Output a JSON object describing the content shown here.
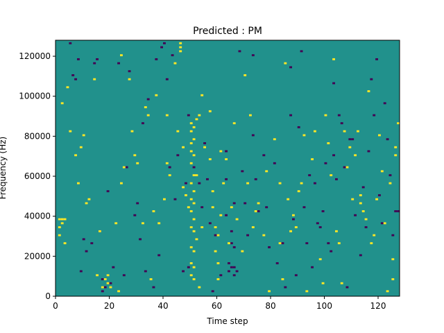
{
  "chart_data": {
    "type": "heatmap",
    "title": "Predicted : PM",
    "xlabel": "Time step",
    "ylabel": "Frequency (Hz)",
    "xlim": [
      0,
      128
    ],
    "ylim": [
      0,
      128000
    ],
    "x_ticks": [
      0,
      20,
      40,
      60,
      80,
      100,
      120
    ],
    "y_ticks": [
      0,
      20000,
      40000,
      60000,
      80000,
      100000,
      120000
    ],
    "x_tick_labels": [
      "0",
      "20",
      "40",
      "60",
      "80",
      "100",
      "120"
    ],
    "y_tick_labels": [
      "0",
      "20000",
      "40000",
      "60000",
      "80000",
      "100000",
      "120000"
    ],
    "grid": false,
    "n_time_steps": 128,
    "n_freq_bins": 128,
    "bin_hz": 1000,
    "default_value": 0,
    "colormap": {
      "-1": "#440154",
      "0": "#21918c",
      "1": "#fde725"
    },
    "cells_high": [
      [
        2,
        34000
      ],
      [
        2,
        30000
      ],
      [
        2,
        38000
      ],
      [
        3,
        38000
      ],
      [
        3,
        36000
      ],
      [
        4,
        38000
      ],
      [
        4,
        26000
      ],
      [
        3,
        96000
      ],
      [
        5,
        104000
      ],
      [
        6,
        82000
      ],
      [
        8,
        70000
      ],
      [
        9,
        56000
      ],
      [
        10,
        74000
      ],
      [
        11,
        80000
      ],
      [
        12,
        46000
      ],
      [
        13,
        48000
      ],
      [
        15,
        108000
      ],
      [
        16,
        10000
      ],
      [
        17,
        32000
      ],
      [
        18,
        4000
      ],
      [
        19,
        8000
      ],
      [
        20,
        10000
      ],
      [
        20,
        6000
      ],
      [
        21,
        4000
      ],
      [
        23,
        36000
      ],
      [
        24,
        2000
      ],
      [
        25,
        56000
      ],
      [
        25,
        120000
      ],
      [
        26,
        64000
      ],
      [
        28,
        108000
      ],
      [
        29,
        82000
      ],
      [
        30,
        70000
      ],
      [
        31,
        66000
      ],
      [
        33,
        36000
      ],
      [
        34,
        94000
      ],
      [
        35,
        90000
      ],
      [
        36,
        8000
      ],
      [
        37,
        42000
      ],
      [
        38,
        100000
      ],
      [
        39,
        36000
      ],
      [
        41,
        48000
      ],
      [
        42,
        66000
      ],
      [
        42,
        90000
      ],
      [
        43,
        60000
      ],
      [
        45,
        116000
      ],
      [
        46,
        82000
      ],
      [
        47,
        124000
      ],
      [
        47,
        126000
      ],
      [
        47,
        122000
      ],
      [
        48,
        74000
      ],
      [
        48,
        54000
      ],
      [
        49,
        50000
      ],
      [
        50,
        44000
      ],
      [
        51,
        86000
      ],
      [
        51,
        82000
      ],
      [
        51,
        76000
      ],
      [
        51,
        72000
      ],
      [
        51,
        66000
      ],
      [
        51,
        56000
      ],
      [
        51,
        48000
      ],
      [
        51,
        42000
      ],
      [
        51,
        34000
      ],
      [
        51,
        24000
      ],
      [
        51,
        16000
      ],
      [
        51,
        10000
      ],
      [
        52,
        84000
      ],
      [
        52,
        78000
      ],
      [
        52,
        70000
      ],
      [
        52,
        60000
      ],
      [
        52,
        52000
      ],
      [
        52,
        46000
      ],
      [
        52,
        38000
      ],
      [
        52,
        32000
      ],
      [
        52,
        22000
      ],
      [
        52,
        14000
      ],
      [
        52,
        8000
      ],
      [
        53,
        88000
      ],
      [
        53,
        60000
      ],
      [
        53,
        28000
      ],
      [
        54,
        90000
      ],
      [
        54,
        4000
      ],
      [
        55,
        100000
      ],
      [
        55,
        34000
      ],
      [
        56,
        74000
      ],
      [
        58,
        92000
      ],
      [
        58,
        68000
      ],
      [
        59,
        52000
      ],
      [
        59,
        44000
      ],
      [
        60,
        34000
      ],
      [
        60,
        22000
      ],
      [
        61,
        30000
      ],
      [
        61,
        16000
      ],
      [
        61,
        8000
      ],
      [
        62,
        72000
      ],
      [
        62,
        40000
      ],
      [
        63,
        56000
      ],
      [
        64,
        68000
      ],
      [
        65,
        26000
      ],
      [
        66,
        44000
      ],
      [
        67,
        86000
      ],
      [
        68,
        38000
      ],
      [
        70,
        22000
      ],
      [
        71,
        110000
      ],
      [
        72,
        56000
      ],
      [
        73,
        90000
      ],
      [
        74,
        34000
      ],
      [
        75,
        42000
      ],
      [
        76,
        46000
      ],
      [
        78,
        30000
      ],
      [
        79,
        62000
      ],
      [
        80,
        2000
      ],
      [
        82,
        78000
      ],
      [
        84,
        56000
      ],
      [
        84,
        26000
      ],
      [
        85,
        8000
      ],
      [
        86,
        116000
      ],
      [
        87,
        48000
      ],
      [
        88,
        32000
      ],
      [
        89,
        40000
      ],
      [
        90,
        34000
      ],
      [
        91,
        52000
      ],
      [
        92,
        56000
      ],
      [
        93,
        80000
      ],
      [
        94,
        2000
      ],
      [
        96,
        68000
      ],
      [
        97,
        82000
      ],
      [
        99,
        18000
      ],
      [
        100,
        6000
      ],
      [
        101,
        90000
      ],
      [
        102,
        76000
      ],
      [
        103,
        60000
      ],
      [
        104,
        118000
      ],
      [
        105,
        32000
      ],
      [
        106,
        26000
      ],
      [
        107,
        6000
      ],
      [
        108,
        82000
      ],
      [
        109,
        64000
      ],
      [
        110,
        74000
      ],
      [
        111,
        48000
      ],
      [
        112,
        70000
      ],
      [
        113,
        82000
      ],
      [
        114,
        50000
      ],
      [
        114,
        46000
      ],
      [
        115,
        42000
      ],
      [
        116,
        38000
      ],
      [
        117,
        102000
      ],
      [
        118,
        26000
      ],
      [
        119,
        30000
      ],
      [
        120,
        48000
      ],
      [
        121,
        80000
      ],
      [
        122,
        62000
      ],
      [
        123,
        36000
      ],
      [
        124,
        2000
      ],
      [
        125,
        56000
      ],
      [
        126,
        18000
      ],
      [
        126,
        8000
      ],
      [
        127,
        74000
      ],
      [
        127,
        70000
      ],
      [
        128,
        86000
      ]
    ],
    "cells_low": [
      [
        6,
        126000
      ],
      [
        7,
        110000
      ],
      [
        8,
        108000
      ],
      [
        9,
        118000
      ],
      [
        10,
        12000
      ],
      [
        11,
        28000
      ],
      [
        12,
        22000
      ],
      [
        14,
        26000
      ],
      [
        15,
        116000
      ],
      [
        16,
        118000
      ],
      [
        17,
        32000
      ],
      [
        18,
        8000
      ],
      [
        18,
        2000
      ],
      [
        19,
        4000
      ],
      [
        20,
        52000
      ],
      [
        21,
        6000
      ],
      [
        22,
        14000
      ],
      [
        24,
        116000
      ],
      [
        26,
        10000
      ],
      [
        27,
        64000
      ],
      [
        28,
        112000
      ],
      [
        30,
        40000
      ],
      [
        31,
        46000
      ],
      [
        32,
        28000
      ],
      [
        33,
        86000
      ],
      [
        34,
        12000
      ],
      [
        35,
        98000
      ],
      [
        37,
        4000
      ],
      [
        38,
        118000
      ],
      [
        39,
        20000
      ],
      [
        40,
        124000
      ],
      [
        41,
        126000
      ],
      [
        42,
        108000
      ],
      [
        43,
        64000
      ],
      [
        44,
        120000
      ],
      [
        45,
        48000
      ],
      [
        46,
        70000
      ],
      [
        48,
        12000
      ],
      [
        49,
        56000
      ],
      [
        50,
        90000
      ],
      [
        50,
        14000
      ],
      [
        52,
        64000
      ],
      [
        54,
        56000
      ],
      [
        55,
        44000
      ],
      [
        56,
        76000
      ],
      [
        57,
        58000
      ],
      [
        58,
        36000
      ],
      [
        59,
        2000
      ],
      [
        60,
        30000
      ],
      [
        62,
        10000
      ],
      [
        64,
        72000
      ],
      [
        64,
        58000
      ],
      [
        64,
        40000
      ],
      [
        65,
        16000
      ],
      [
        65,
        12000
      ],
      [
        66,
        26000
      ],
      [
        66,
        14000
      ],
      [
        67,
        14000
      ],
      [
        67,
        10000
      ],
      [
        67,
        24000
      ],
      [
        66,
        32000
      ],
      [
        67,
        46000
      ],
      [
        68,
        12000
      ],
      [
        69,
        122000
      ],
      [
        70,
        62000
      ],
      [
        71,
        46000
      ],
      [
        72,
        30000
      ],
      [
        74,
        120000
      ],
      [
        74,
        80000
      ],
      [
        75,
        58000
      ],
      [
        76,
        42000
      ],
      [
        78,
        70000
      ],
      [
        79,
        44000
      ],
      [
        80,
        24000
      ],
      [
        82,
        66000
      ],
      [
        83,
        16000
      ],
      [
        85,
        26000
      ],
      [
        86,
        4000
      ],
      [
        88,
        114000
      ],
      [
        88,
        90000
      ],
      [
        89,
        38000
      ],
      [
        90,
        10000
      ],
      [
        91,
        84000
      ],
      [
        92,
        122000
      ],
      [
        93,
        44000
      ],
      [
        94,
        26000
      ],
      [
        95,
        60000
      ],
      [
        96,
        14000
      ],
      [
        97,
        56000
      ],
      [
        98,
        36000
      ],
      [
        99,
        34000
      ],
      [
        100,
        42000
      ],
      [
        101,
        66000
      ],
      [
        102,
        26000
      ],
      [
        103,
        22000
      ],
      [
        104,
        106000
      ],
      [
        104,
        70000
      ],
      [
        105,
        58000
      ],
      [
        106,
        90000
      ],
      [
        107,
        86000
      ],
      [
        108,
        64000
      ],
      [
        109,
        4000
      ],
      [
        110,
        78000
      ],
      [
        111,
        78000
      ],
      [
        112,
        40000
      ],
      [
        114,
        20000
      ],
      [
        115,
        54000
      ],
      [
        116,
        34000
      ],
      [
        117,
        72000
      ],
      [
        118,
        108000
      ],
      [
        119,
        90000
      ],
      [
        120,
        118000
      ],
      [
        121,
        50000
      ],
      [
        122,
        36000
      ],
      [
        123,
        96000
      ],
      [
        124,
        78000
      ],
      [
        125,
        60000
      ],
      [
        126,
        30000
      ],
      [
        127,
        42000
      ],
      [
        128,
        42000
      ]
    ]
  }
}
